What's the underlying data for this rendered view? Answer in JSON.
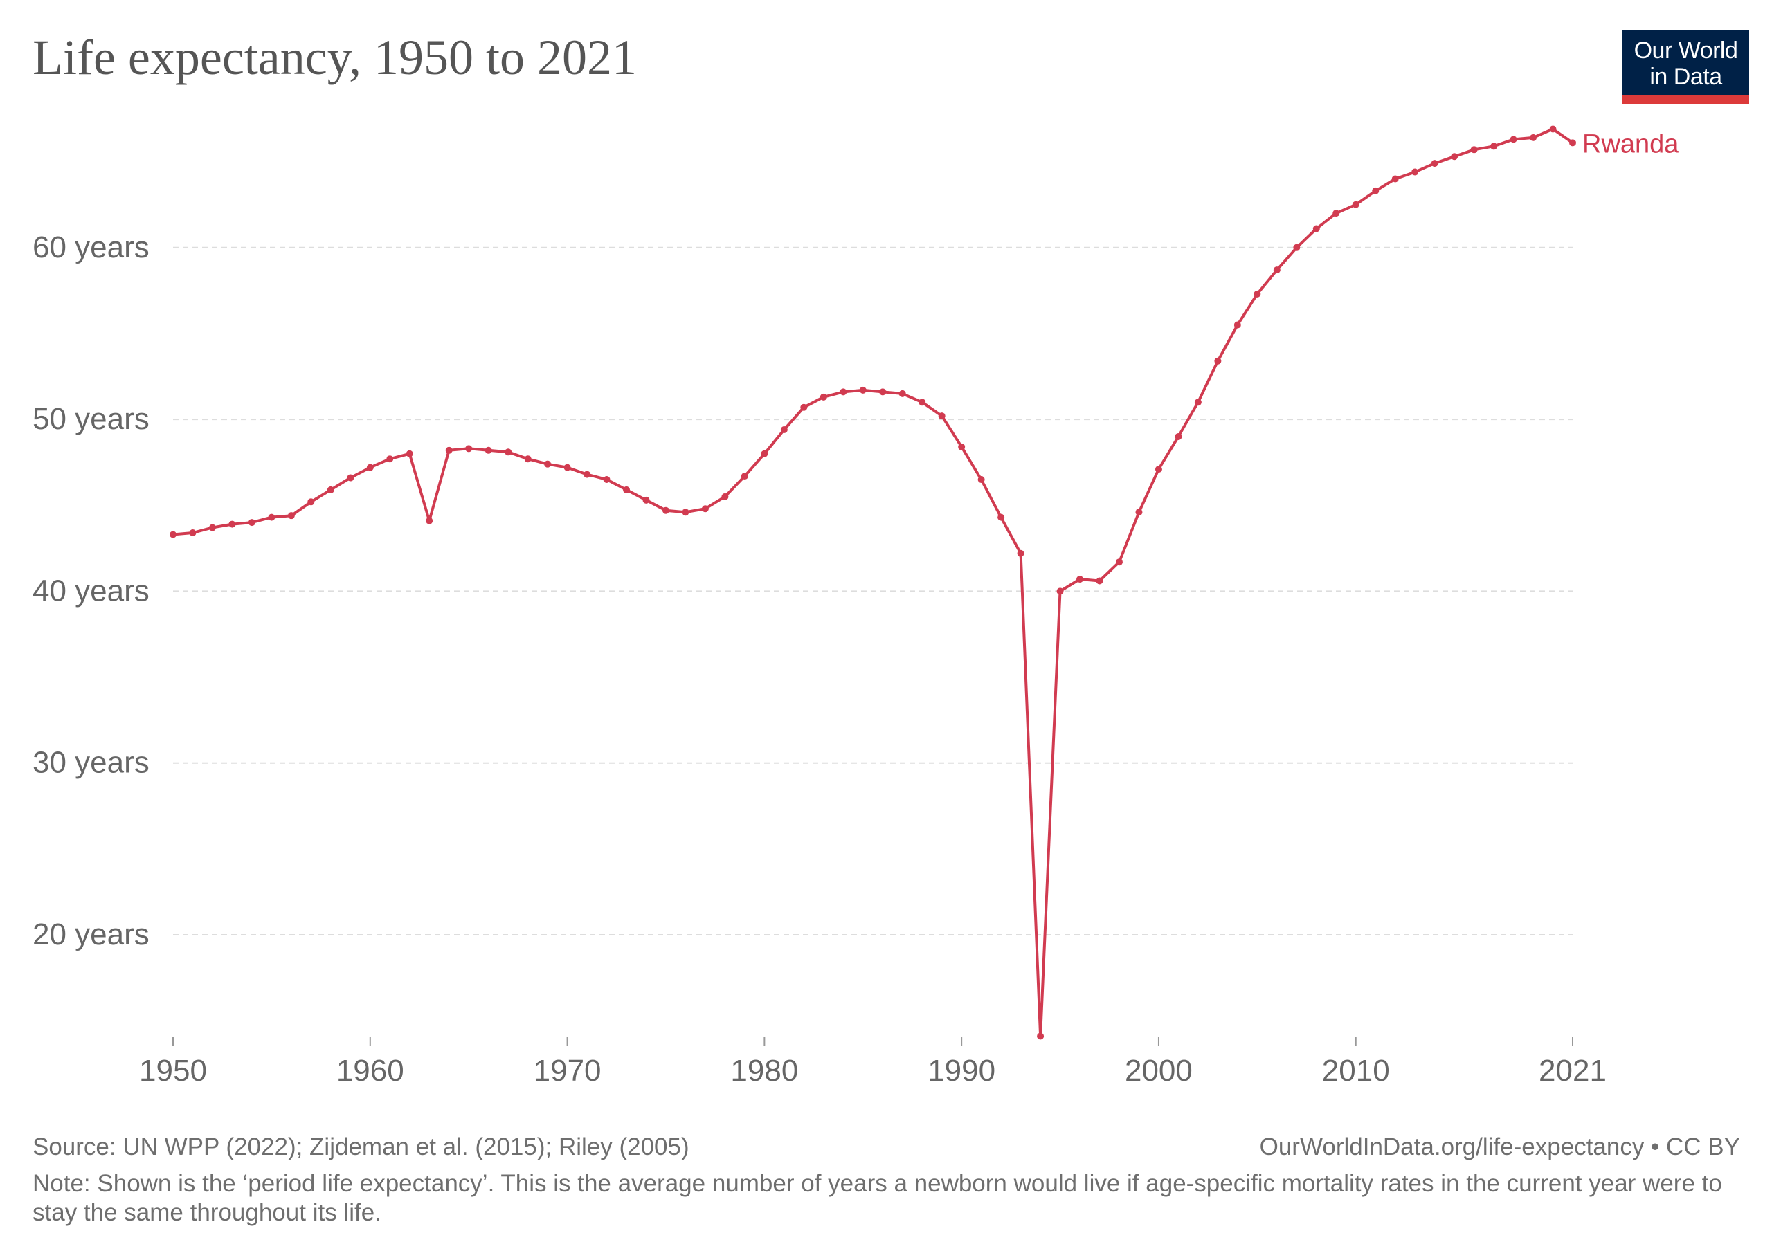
{
  "header": {
    "title": "Life expectancy, 1950 to 2021"
  },
  "logo": {
    "line1": "Our World",
    "line2": "in Data",
    "bg_color": "#002147",
    "bar_color": "#dc3a3a"
  },
  "footer": {
    "source": "Source: UN WPP (2022); Zijdeman et al. (2015); Riley (2005)",
    "credit": "OurWorldInData.org/life-expectancy • CC BY",
    "note": "Note: Shown is the ‘period life expectancy’. This is the average number of years a newborn would live if age-specific mortality rates in the current year were to stay the same throughout its life."
  },
  "chart_data": {
    "type": "line",
    "title": "Life expectancy, 1950 to 2021",
    "xlim": [
      1950,
      2021
    ],
    "ylim": [
      14,
      67
    ],
    "x_ticks": [
      1950,
      1960,
      1970,
      1980,
      1990,
      2000,
      2010,
      2021
    ],
    "x_tick_labels": [
      "1950",
      "1960",
      "1970",
      "1980",
      "1990",
      "2000",
      "2010",
      "2021"
    ],
    "y_ticks": [
      20,
      30,
      40,
      50,
      60
    ],
    "y_tick_labels": [
      "20 years",
      "30 years",
      "40 years",
      "50 years",
      "60 years"
    ],
    "grid": "horizontal dashed",
    "series": [
      {
        "name": "Rwanda",
        "color": "#d13b50",
        "x": [
          1950,
          1951,
          1952,
          1953,
          1954,
          1955,
          1956,
          1957,
          1958,
          1959,
          1960,
          1961,
          1962,
          1963,
          1964,
          1965,
          1966,
          1967,
          1968,
          1969,
          1970,
          1971,
          1972,
          1973,
          1974,
          1975,
          1976,
          1977,
          1978,
          1979,
          1980,
          1981,
          1982,
          1983,
          1984,
          1985,
          1986,
          1987,
          1988,
          1989,
          1990,
          1991,
          1992,
          1993,
          1994,
          1995,
          1996,
          1997,
          1998,
          1999,
          2000,
          2001,
          2002,
          2003,
          2004,
          2005,
          2006,
          2007,
          2008,
          2009,
          2010,
          2011,
          2012,
          2013,
          2014,
          2015,
          2016,
          2017,
          2018,
          2019,
          2020,
          2021
        ],
        "y": [
          43.3,
          43.4,
          43.7,
          43.9,
          44.0,
          44.3,
          44.4,
          45.2,
          45.9,
          46.6,
          47.2,
          47.7,
          48.0,
          44.1,
          48.2,
          48.3,
          48.2,
          48.1,
          47.7,
          47.4,
          47.2,
          46.8,
          46.5,
          45.9,
          45.3,
          44.7,
          44.6,
          44.8,
          45.5,
          46.7,
          48.0,
          49.4,
          50.7,
          51.3,
          51.6,
          51.7,
          51.6,
          51.5,
          51.0,
          50.2,
          48.4,
          46.5,
          44.3,
          42.2,
          14.1,
          40.0,
          40.7,
          40.6,
          41.7,
          44.6,
          47.1,
          49.0,
          51.0,
          53.4,
          55.5,
          57.3,
          58.7,
          60.0,
          61.1,
          62.0,
          62.5,
          63.3,
          64.0,
          64.4,
          64.9,
          65.3,
          65.7,
          65.9,
          66.3,
          66.4,
          66.9,
          66.1
        ]
      }
    ]
  }
}
